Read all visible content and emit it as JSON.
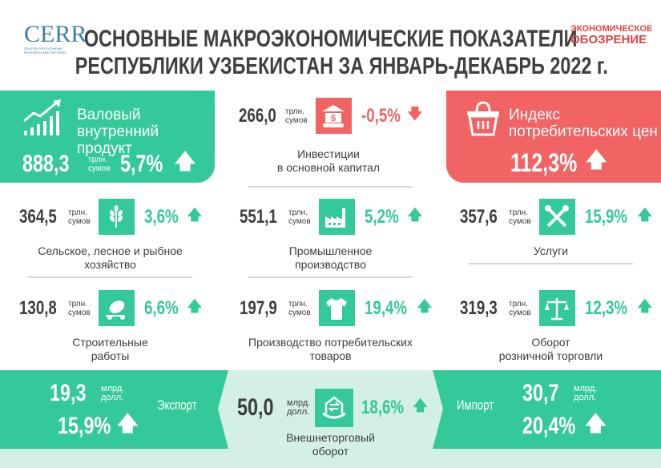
{
  "header": {
    "logo_left": "CERR",
    "logo_left_sub": "CENTER FOR ECONOMIC RESEARCH AND REFORMS",
    "title_line1": "ОСНОВНЫЕ МАКРОЭКОНОМИЧЕСКИЕ ПОКАЗАТЕЛИ",
    "title_line2": "РЕСПУБЛИКИ УЗБЕКИСТАН ЗА ЯНВАРЬ-ДЕКАБРЬ 2022 г.",
    "logo_right_line1": "ЭКОНОМИЧЕСКОЕ",
    "logo_right_line2": "ОБОЗРЕНИЕ"
  },
  "colors": {
    "green": "#34c99a",
    "red": "#f26363",
    "light_green": "#d4efe3",
    "text": "#3d3d3d"
  },
  "gdp": {
    "label": "Валовый внутренний продукт",
    "value": "888,3",
    "unit1": "трлн.",
    "unit2": "сумов",
    "change": "5,7%",
    "icon": "growth-chart-icon"
  },
  "cpi": {
    "label_line1": "Индекс",
    "label_line2": "потребительских цен",
    "value": "112,3%",
    "icon": "basket-icon"
  },
  "investments": {
    "value": "266,0",
    "unit1": "трлн.",
    "unit2": "сумов",
    "change": "-0,5%",
    "label_line1": "Инвестиции",
    "label_line2": "в основной капитал",
    "icon": "bank-dollar-icon"
  },
  "sectors": [
    {
      "value": "364,5",
      "unit1": "трлн.",
      "unit2": "сумов",
      "change": "3,6%",
      "label_line1": "Сельское, лесное и рыбное",
      "label_line2": "хозяйство",
      "icon": "wheat-icon"
    },
    {
      "value": "551,1",
      "unit1": "трлн.",
      "unit2": "сумов",
      "change": "5,2%",
      "label_line1": "Промышленное",
      "label_line2": "производство",
      "icon": "factory-icon"
    },
    {
      "value": "357,6",
      "unit1": "трлн.",
      "unit2": "сумов",
      "change": "15,9%",
      "label_line1": "Услуги",
      "label_line2": "",
      "icon": "tools-icon"
    },
    {
      "value": "130,8",
      "unit1": "трлн.",
      "unit2": "сумов",
      "change": "6,6%",
      "label_line1": "Строительные",
      "label_line2": "работы",
      "icon": "cement-mixer-icon"
    },
    {
      "value": "197,9",
      "unit1": "трлн.",
      "unit2": "сумов",
      "change": "19,4%",
      "label_line1": "Производство потребительских",
      "label_line2": "товаров",
      "icon": "tshirt-icon"
    },
    {
      "value": "319,3",
      "unit1": "трлн.",
      "unit2": "сумов",
      "change": "12,3%",
      "label_line1": "Оборот",
      "label_line2": "розничной торговли",
      "icon": "scales-icon"
    }
  ],
  "trade": {
    "export": {
      "label": "Экспорт",
      "value": "19,3",
      "unit1": "млрд.",
      "unit2": "долл.",
      "change": "15,9%"
    },
    "import": {
      "label": "Импорт",
      "value": "30,7",
      "unit1": "млрд.",
      "unit2": "долл.",
      "change": "20,4%"
    },
    "turnover": {
      "value": "50,0",
      "unit1": "млрд.",
      "unit2": "долл.",
      "change": "18,6%",
      "label_line1": "Внешнеторговый",
      "label_line2": "оборот",
      "icon": "exchange-house-icon"
    }
  }
}
